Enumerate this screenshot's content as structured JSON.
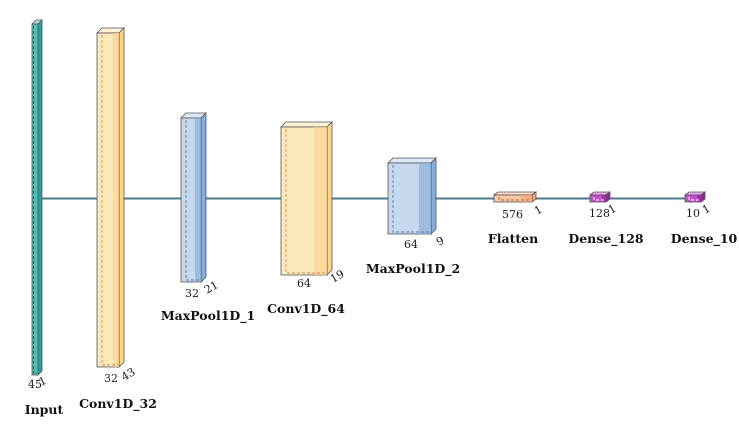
{
  "diagram": {
    "type": "neural-network-architecture",
    "connector_color": "#4a7a84",
    "layers": [
      {
        "id": "input",
        "label": "Input",
        "dim_a": "45",
        "dim_b": "1",
        "front": "#4fbdb8",
        "side": "#2f9e9a",
        "top": "#a7e3de",
        "dash": "#0d5a56"
      },
      {
        "id": "conv1d-32",
        "label": "Conv1D_32",
        "dim_a": "32",
        "dim_b": "43",
        "front": "#fde8bb",
        "side": "#fbd48a",
        "top": "#fef2d5",
        "dash": "#b9945a"
      },
      {
        "id": "maxpool1d-1",
        "label": "MaxPool1D_1",
        "dim_a": "32",
        "dim_b": "21",
        "front": "#c5d8ee",
        "side": "#87addb",
        "top": "#dbe7f5",
        "dash": "#5b7ea8"
      },
      {
        "id": "conv1d-64",
        "label": "Conv1D_64",
        "dim_a": "64",
        "dim_b": "19",
        "front": "#fde8bb",
        "side": "#fbd48a",
        "top": "#fef2d5",
        "dash": "#b9945a"
      },
      {
        "id": "maxpool1d-2",
        "label": "MaxPool1D_2",
        "dim_a": "64",
        "dim_b": "9",
        "front": "#c5d8ee",
        "side": "#87addb",
        "top": "#dbe7f5",
        "dash": "#5b7ea8"
      },
      {
        "id": "flatten",
        "label": "Flatten",
        "dim_a": "576",
        "dim_b": "1",
        "front": "#fbc9a6",
        "side": "#f4a57a",
        "top": "#fde0c9",
        "dash": "#b06a40"
      },
      {
        "id": "dense-128",
        "label": "Dense_128",
        "dim_a": "128",
        "dim_b": "1",
        "front": "#c64fcf",
        "side": "#8e2597",
        "top": "#e7a9ec",
        "dash": "#ffffff"
      },
      {
        "id": "dense-10",
        "label": "Dense_10",
        "dim_a": "10",
        "dim_b": "1",
        "front": "#c64fcf",
        "side": "#8e2597",
        "top": "#e7a9ec",
        "dash": "#ffffff"
      }
    ]
  }
}
